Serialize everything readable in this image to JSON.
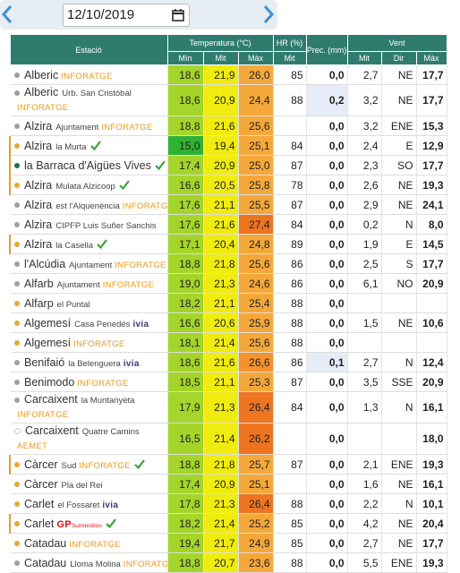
{
  "date": "12/10/2019",
  "columns": {
    "station": "Estació",
    "temp": "Temperatura (°C)",
    "hr": "HR (%)",
    "prec": "Prec. (mm)",
    "wind": "Vent"
  },
  "subcolumns": {
    "temp_min": "Mín",
    "temp_mit": "Mit",
    "temp_max": "Màx",
    "hr_mit": "Mit",
    "wind_mit": "Mit",
    "wind_dir": "Dir",
    "wind_max": "Màx"
  },
  "rows": [
    {
      "name": "Alberic",
      "tag": "INFORATGE",
      "dot": "#a0a0a0",
      "min": "18,6",
      "mit": "21,9",
      "max": "26,0",
      "hr": "85",
      "prec": "0,0",
      "wind": "2,7",
      "dir": "NE",
      "gust": "17,7"
    },
    {
      "name": "Alberic",
      "sub": "Urb. San Cristóbal",
      "tag": "INFORATGE",
      "dot": "#a0a0a0",
      "min": "18,6",
      "mit": "20,9",
      "max": "24,4",
      "hr": "88",
      "prec": "0,2",
      "wind": "3,2",
      "dir": "NE",
      "gust": "17,7"
    },
    {
      "name": "Alzira",
      "sub": "Ajuntament",
      "tag": "INFORATGE",
      "dot": "#a0a0a0",
      "min": "18,8",
      "mit": "21,6",
      "max": "25,6",
      "hr": null,
      "prec": "0,0",
      "wind": "3,2",
      "dir": "ENE",
      "gust": "15,3"
    },
    {
      "name": "Alzira",
      "sub": "la Murta",
      "verified": true,
      "dot": "#e8a830",
      "min": "15,0",
      "mit": "19,4",
      "max": "25,1",
      "hr": "84",
      "prec": "0,0",
      "wind": "2,4",
      "dir": "E",
      "gust": "12,9"
    },
    {
      "name": "la Barraca d'Aigües Vives",
      "verified": true,
      "dot": "#1f6e5e",
      "min": "17,4",
      "mit": "20,9",
      "max": "25,0",
      "hr": "87",
      "prec": "0,0",
      "wind": "2,3",
      "dir": "SO",
      "gust": "17,7"
    },
    {
      "name": "Alzira",
      "sub": "Mulata Alzicoop",
      "verified": true,
      "dot": "#e8a830",
      "min": "16,6",
      "mit": "20,5",
      "max": "25,8",
      "hr": "78",
      "prec": "0,0",
      "wind": "2,6",
      "dir": "NE",
      "gust": "19,3"
    },
    {
      "name": "Alzira",
      "sub": "est l'Alquenència",
      "tag": "INFORATGE",
      "dot": "#a0a0a0",
      "min": "17,6",
      "mit": "21,1",
      "max": "25,5",
      "hr": "87",
      "prec": "0,0",
      "wind": "2,9",
      "dir": "NE",
      "gust": "24,1"
    },
    {
      "name": "Alzira",
      "sub": "CIPFP Luis Suñer Sanchis",
      "dot": "#a0a0a0",
      "min": "17,6",
      "mit": "21,6",
      "max": "27,4",
      "hr": "84",
      "prec": "0,0",
      "wind": "0,2",
      "dir": "N",
      "gust": "8,0"
    },
    {
      "name": "Alzira",
      "sub": "la Casella",
      "verified": true,
      "dot": "#e8a830",
      "min": "17,1",
      "mit": "20,4",
      "max": "24,8",
      "hr": "89",
      "prec": "0,0",
      "wind": "1,9",
      "dir": "E",
      "gust": "14,5"
    },
    {
      "name": "l'Alcúdia",
      "sub": "Ajuntament",
      "tag": "INFORATGE",
      "dot": "#a0a0a0",
      "min": "18,8",
      "mit": "21,8",
      "max": "25,6",
      "hr": "86",
      "prec": "0,0",
      "wind": "2,5",
      "dir": "S",
      "gust": "17,7"
    },
    {
      "name": "Alfarb",
      "sub": "Ajuntament",
      "tag": "INFORATGE",
      "dot": "#a0a0a0",
      "min": "19,0",
      "mit": "21,3",
      "max": "24,6",
      "hr": "86",
      "prec": "0,0",
      "wind": "6,1",
      "dir": "NO",
      "gust": "20,9"
    },
    {
      "name": "Alfarp",
      "sub": "el Puntal",
      "dot": "#e8a830",
      "min": "18,2",
      "mit": "21,1",
      "max": "25,4",
      "hr": "88",
      "prec": "0,0",
      "wind": null,
      "dir": null,
      "gust": null
    },
    {
      "name": "Algemesí",
      "sub": "Casa Penedés",
      "tag": "ivia",
      "dot": "#e8a830",
      "min": "16,6",
      "mit": "20,6",
      "max": "25,9",
      "hr": "88",
      "prec": "0,0",
      "wind": "1,5",
      "dir": "NE",
      "gust": "10,6"
    },
    {
      "name": "Algemesí",
      "tag": "INFORATGE",
      "dot": "#e8a830",
      "min": "18,1",
      "mit": "21,4",
      "max": "25,6",
      "hr": "88",
      "prec": "0,0",
      "wind": null,
      "dir": null,
      "gust": null
    },
    {
      "name": "Benifaió",
      "sub": "la Belenguera",
      "tag": "ivia",
      "dot": "#a0a0a0",
      "min": "18,6",
      "mit": "21,6",
      "max": "26,6",
      "hr": "86",
      "prec": "0,1",
      "wind": "2,7",
      "dir": "N",
      "gust": "12,4"
    },
    {
      "name": "Benimodo",
      "tag": "INFORATGE",
      "dot": "#a0a0a0",
      "min": "18,5",
      "mit": "21,1",
      "max": "25,3",
      "hr": "87",
      "prec": "0,0",
      "wind": "3,5",
      "dir": "SSE",
      "gust": "20,9"
    },
    {
      "name": "Carcaixent",
      "sub": "la Muntanyeta",
      "tag": "INFORATGE",
      "dot": "#a0a0a0",
      "min": "17,9",
      "mit": "21,3",
      "max": "26,4",
      "hr": "84",
      "prec": "0,0",
      "wind": "1,3",
      "dir": "N",
      "gust": "16,1"
    },
    {
      "name": "Carcaixent",
      "sub": "Quatre Camins",
      "tag": "AEMET",
      "dot": "#ffffff",
      "min": "16,5",
      "mit": "21,4",
      "max": "26,2",
      "hr": null,
      "prec": "0,0",
      "wind": null,
      "dir": null,
      "gust": "18,0"
    },
    {
      "name": "Càrcer",
      "sub": "Sud",
      "tag": "INFORATGE",
      "verified": true,
      "dot": "#e8a830",
      "min": "18,8",
      "mit": "21,8",
      "max": "25,7",
      "hr": "87",
      "prec": "0,0",
      "wind": "2,1",
      "dir": "ENE",
      "gust": "19,3"
    },
    {
      "name": "Càrcer",
      "sub": "Pla del Rei",
      "dot": "#e8a830",
      "min": "17,4",
      "mit": "20,9",
      "max": "25,1",
      "hr": null,
      "prec": "0,0",
      "wind": "1,6",
      "dir": "NE",
      "gust": "16,1"
    },
    {
      "name": "Carlet",
      "sub": "el Fossaret",
      "tag": "ivia",
      "dot": "#e8a830",
      "min": "17,8",
      "mit": "21,3",
      "max": "26,4",
      "hr": "88",
      "prec": "0,0",
      "wind": "2,2",
      "dir": "N",
      "gust": "10,1"
    },
    {
      "name": "Carlet",
      "tag": "GP",
      "tag_sub": "Suministros",
      "verified": true,
      "dot": "#e8a830",
      "min": "18,2",
      "mit": "21,4",
      "max": "25,2",
      "hr": "85",
      "prec": "0,0",
      "wind": "4,2",
      "dir": "NE",
      "gust": "20,4"
    },
    {
      "name": "Catadau",
      "tag": "INFORATGE",
      "dot": "#e8a830",
      "min": "19,4",
      "mit": "21,7",
      "max": "24,9",
      "hr": "85",
      "prec": "0,0",
      "wind": "2,7",
      "dir": "NE",
      "gust": "17,7"
    },
    {
      "name": "Catadau",
      "sub": "Lloma Molina",
      "tag": "INFORATGE",
      "dot": "#a0a0a0",
      "min": "18,8",
      "mit": "20,7",
      "max": "23,6",
      "hr": "88",
      "prec": "0,0",
      "wind": "5,5",
      "dir": "ENE",
      "gust": "19,3"
    }
  ]
}
